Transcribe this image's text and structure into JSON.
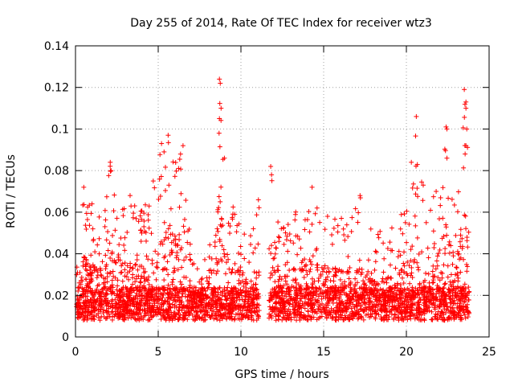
{
  "chart_data": {
    "type": "scatter",
    "title": "Day 255 of 2014, Rate Of TEC Index for receiver wtz3",
    "xlabel": "GPS time / hours",
    "ylabel": "ROTI / TECUs",
    "xlim": [
      0,
      25
    ],
    "ylim": [
      0,
      0.14
    ],
    "xticks": [
      "0",
      "5",
      "10",
      "15",
      "20",
      "25"
    ],
    "xtick_values": [
      0,
      5,
      10,
      15,
      20,
      25
    ],
    "yticks": [
      "0",
      "0.02",
      "0.04",
      "0.06",
      "0.08",
      "0.1",
      "0.12",
      "0.14"
    ],
    "ytick_values": [
      0,
      0.02,
      0.04,
      0.06,
      0.08,
      0.1,
      0.12,
      0.14
    ],
    "grid": true,
    "marker": "plus",
    "color": "#ff0000",
    "gaps_hours": [
      [
        11.1,
        11.7
      ]
    ],
    "envelope": [
      {
        "t": 0.0,
        "upper": 0.028
      },
      {
        "t": 0.5,
        "upper": 0.072
      },
      {
        "t": 1.0,
        "upper": 0.064
      },
      {
        "t": 1.5,
        "upper": 0.058
      },
      {
        "t": 2.1,
        "upper": 0.084
      },
      {
        "t": 2.8,
        "upper": 0.065
      },
      {
        "t": 3.3,
        "upper": 0.068
      },
      {
        "t": 4.0,
        "upper": 0.062
      },
      {
        "t": 4.7,
        "upper": 0.075
      },
      {
        "t": 5.2,
        "upper": 0.093
      },
      {
        "t": 5.6,
        "upper": 0.097
      },
      {
        "t": 6.1,
        "upper": 0.085
      },
      {
        "t": 6.5,
        "upper": 0.092
      },
      {
        "t": 7.0,
        "upper": 0.04
      },
      {
        "t": 7.6,
        "upper": 0.032
      },
      {
        "t": 8.2,
        "upper": 0.07
      },
      {
        "t": 8.7,
        "upper": 0.124
      },
      {
        "t": 9.0,
        "upper": 0.086
      },
      {
        "t": 9.5,
        "upper": 0.07
      },
      {
        "t": 10.0,
        "upper": 0.062
      },
      {
        "t": 10.5,
        "upper": 0.045
      },
      {
        "t": 11.0,
        "upper": 0.068
      },
      {
        "t": 11.8,
        "upper": 0.082
      },
      {
        "t": 12.5,
        "upper": 0.055
      },
      {
        "t": 13.0,
        "upper": 0.058
      },
      {
        "t": 13.8,
        "upper": 0.066
      },
      {
        "t": 14.3,
        "upper": 0.072
      },
      {
        "t": 15.0,
        "upper": 0.064
      },
      {
        "t": 15.6,
        "upper": 0.062
      },
      {
        "t": 16.3,
        "upper": 0.058
      },
      {
        "t": 17.2,
        "upper": 0.068
      },
      {
        "t": 18.0,
        "upper": 0.05
      },
      {
        "t": 18.7,
        "upper": 0.058
      },
      {
        "t": 19.5,
        "upper": 0.054
      },
      {
        "t": 20.2,
        "upper": 0.072
      },
      {
        "t": 20.6,
        "upper": 0.106
      },
      {
        "t": 21.2,
        "upper": 0.062
      },
      {
        "t": 21.8,
        "upper": 0.07
      },
      {
        "t": 22.4,
        "upper": 0.101
      },
      {
        "t": 23.0,
        "upper": 0.066
      },
      {
        "t": 23.5,
        "upper": 0.119
      },
      {
        "t": 23.8,
        "upper": 0.1
      }
    ]
  }
}
